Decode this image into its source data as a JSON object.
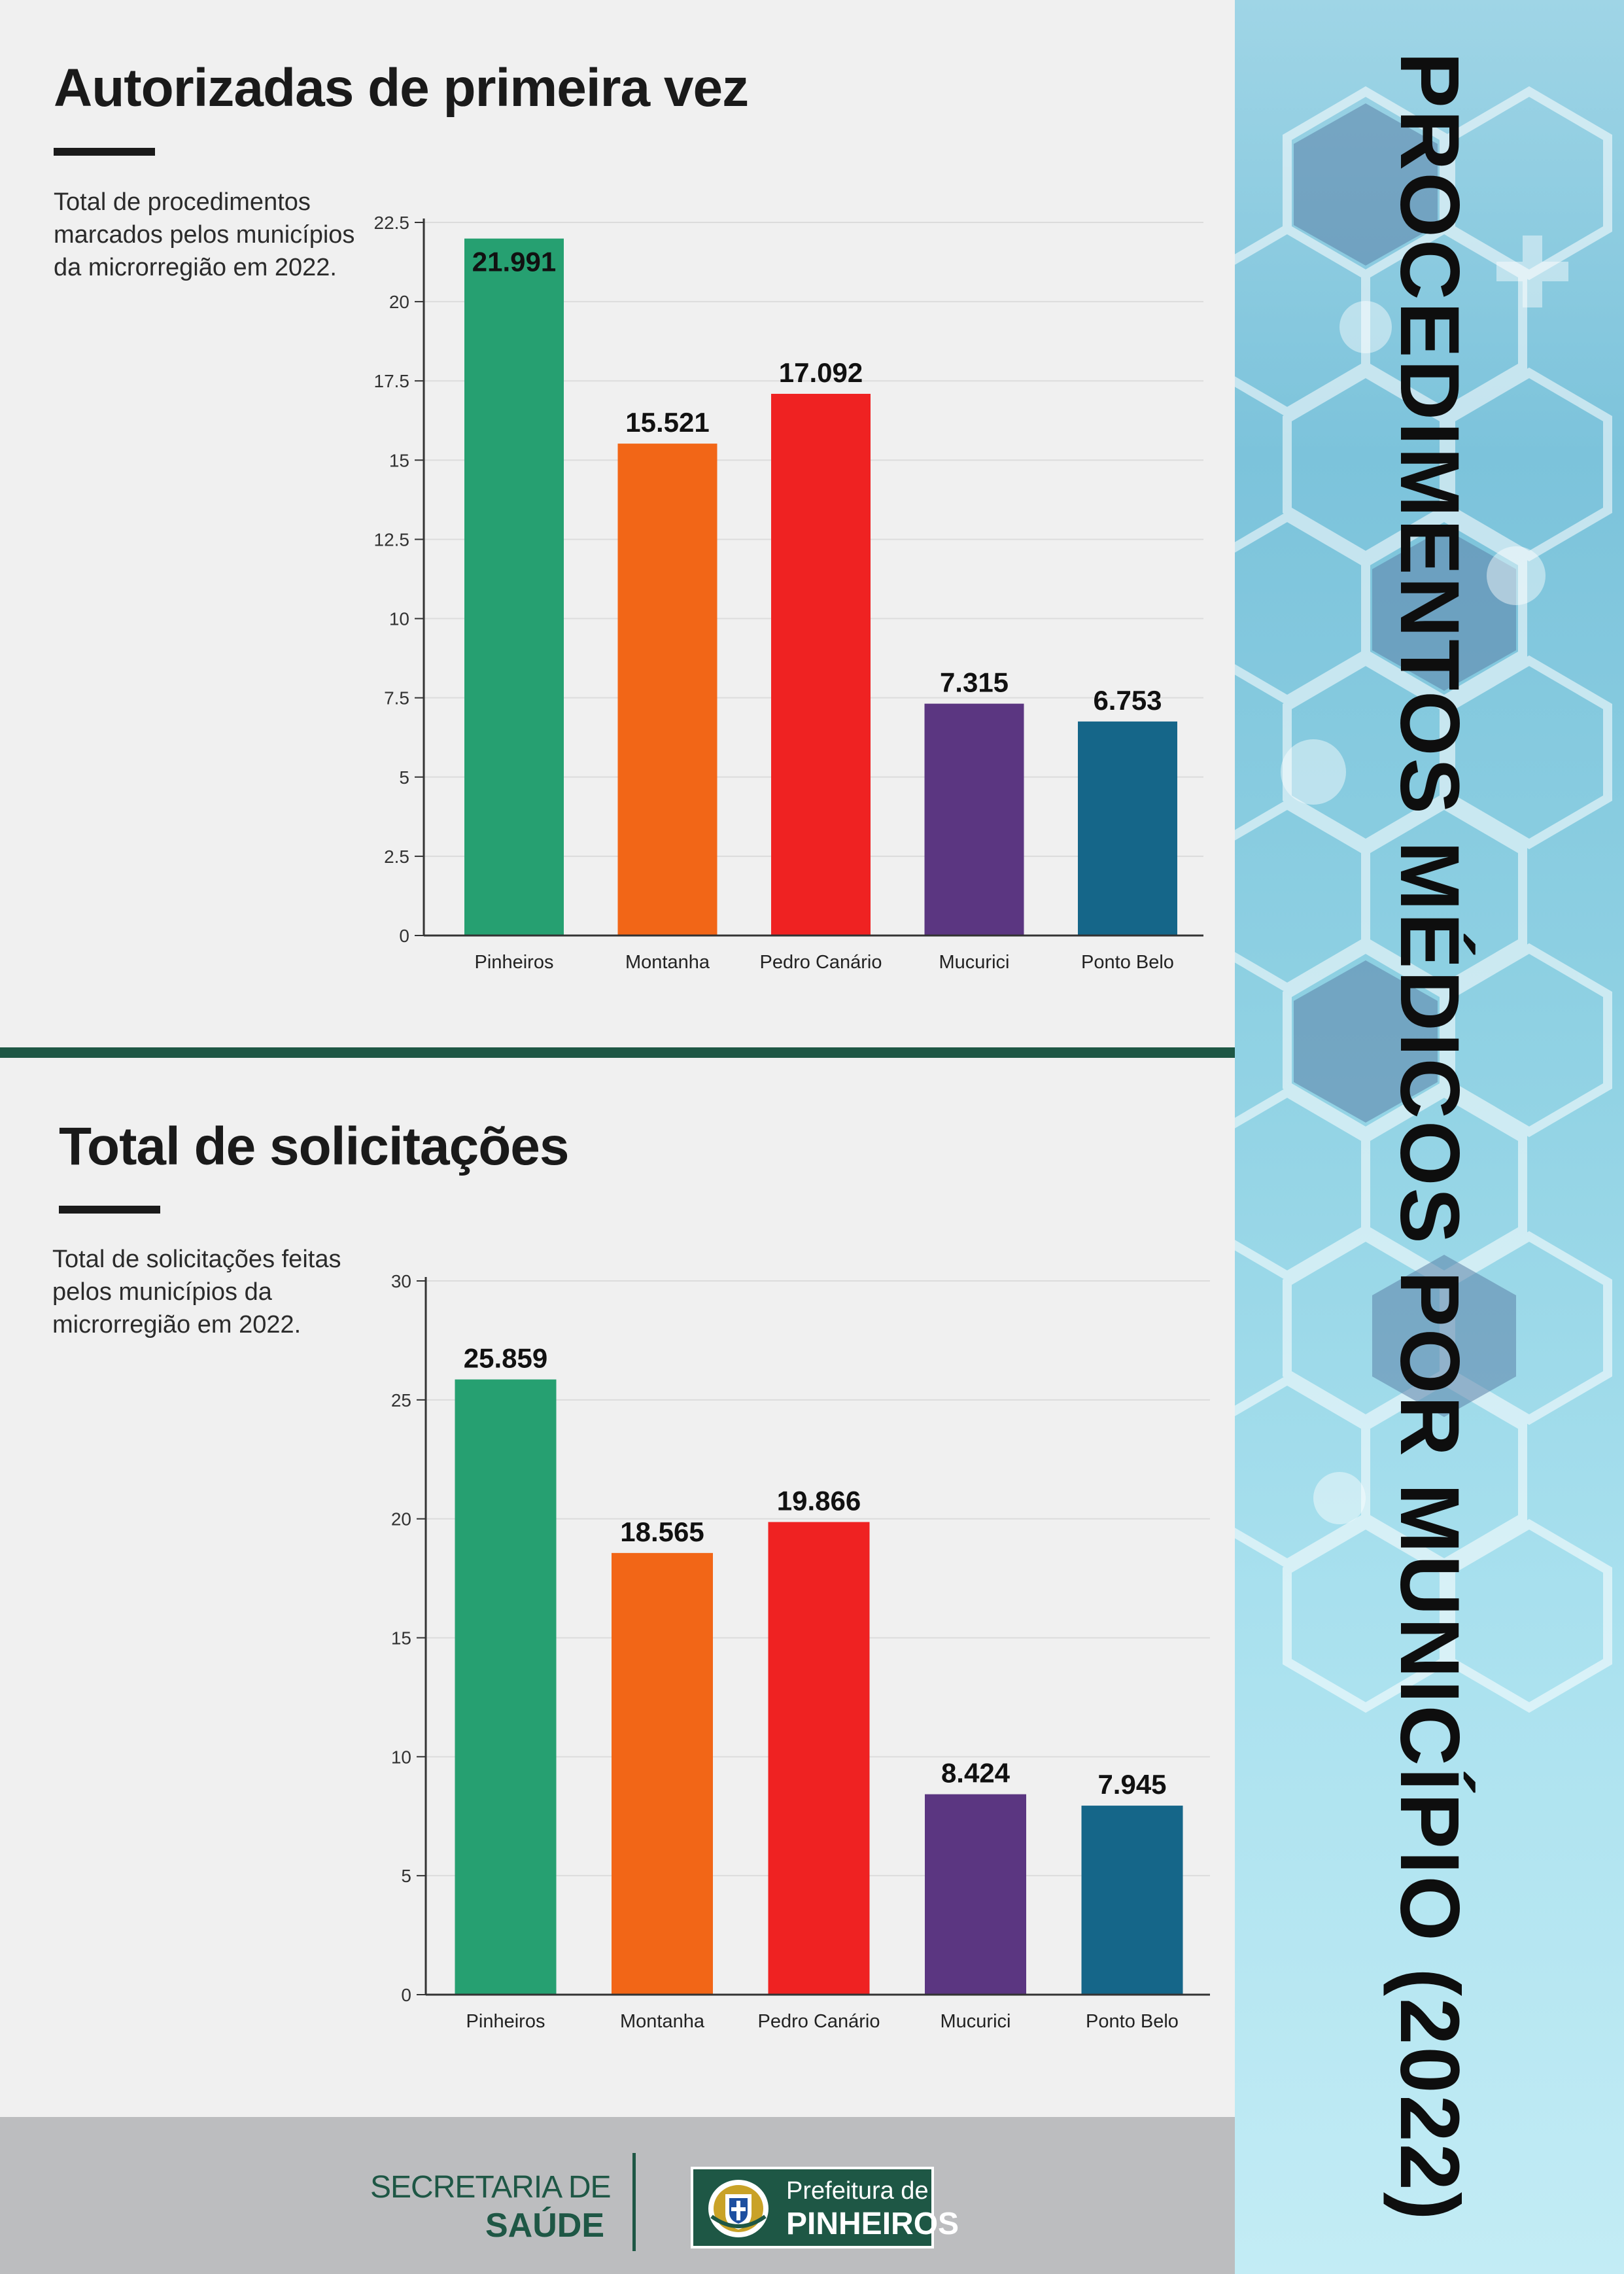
{
  "side_title": "PROCEDIMENTOS MÉDICOS POR MUNICÍPIO (2022)",
  "sections": [
    {
      "title": "Autorizadas de primeira vez",
      "description_lines": [
        "Total de procedimentos",
        "marcados pelos municípios",
        "da microrregião em 2022."
      ]
    },
    {
      "title": "Total de solicitações",
      "description_lines": [
        "Total de solicitações feitas",
        "pelos municípios da",
        "microrregião em 2022."
      ]
    }
  ],
  "colors": {
    "Pinheiros": "#26a071",
    "Montanha": "#f26617",
    "Pedro Canário": "#ef2222",
    "Mucurici": "#5b3681",
    "Ponto Belo": "#156689",
    "brand_green": "#1e5745"
  },
  "chart_data": [
    {
      "type": "bar",
      "title": "Autorizadas de primeira vez",
      "categories": [
        "Pinheiros",
        "Montanha",
        "Pedro Canário",
        "Mucurici",
        "Ponto Belo"
      ],
      "values": [
        21.991,
        15.521,
        17.092,
        7.315,
        6.753
      ],
      "value_labels": [
        "21.991",
        "15.521",
        "17.092",
        "7.315",
        "6.753"
      ],
      "yticks": [
        "0",
        "2.5",
        "5",
        "7.5",
        "10",
        "12.5",
        "15",
        "17.5",
        "20",
        "22.5"
      ],
      "ylim": [
        0,
        22.5
      ],
      "grid": true,
      "xlabel": "",
      "ylabel": ""
    },
    {
      "type": "bar",
      "title": "Total de solicitações",
      "categories": [
        "Pinheiros",
        "Montanha",
        "Pedro Canário",
        "Mucurici",
        "Ponto Belo"
      ],
      "values": [
        25.859,
        18.565,
        19.866,
        8.424,
        7.945
      ],
      "value_labels": [
        "25.859",
        "18.565",
        "19.866",
        "8.424",
        "7.945"
      ],
      "yticks": [
        "0",
        "5",
        "10",
        "15",
        "20",
        "25",
        "30"
      ],
      "ylim": [
        0,
        30
      ],
      "grid": true,
      "xlabel": "",
      "ylabel": ""
    }
  ],
  "footer": {
    "secretaria_line1": "SECRETARIA DE",
    "secretaria_line2": "SAÚDE",
    "logo_line1": "Prefeitura de",
    "logo_line2": "PINHEIROS"
  }
}
